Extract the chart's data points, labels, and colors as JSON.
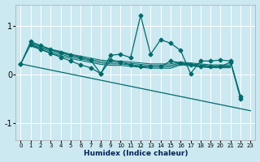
{
  "xlabel": "Humidex (Indice chaleur)",
  "background_color": "#cce8f0",
  "grid_color": "#ffffff",
  "line_color": "#006b6b",
  "xlim": [
    -0.5,
    23.5
  ],
  "ylim": [
    -1.35,
    1.45
  ],
  "yticks": [
    -1,
    0,
    1
  ],
  "xticks": [
    0,
    1,
    2,
    3,
    4,
    5,
    6,
    7,
    8,
    9,
    10,
    11,
    12,
    13,
    14,
    15,
    16,
    17,
    18,
    19,
    20,
    21,
    22,
    23
  ],
  "line_spiky": {
    "x": [
      0,
      1,
      2,
      3,
      4,
      5,
      6,
      7,
      8,
      9,
      10,
      11,
      12,
      13,
      14,
      15,
      16,
      17,
      18,
      19,
      20,
      21,
      22
    ],
    "y": [
      0.22,
      0.68,
      0.6,
      0.52,
      0.46,
      0.4,
      0.36,
      0.3,
      0.02,
      0.4,
      0.42,
      0.35,
      1.22,
      0.42,
      0.72,
      0.65,
      0.5,
      0.02,
      0.28,
      0.28,
      0.3,
      0.28,
      -0.45
    ]
  },
  "line_wavy": {
    "x": [
      0,
      1,
      2,
      3,
      4,
      5,
      6,
      7,
      8,
      9,
      10,
      11,
      12,
      13,
      14,
      15,
      16,
      17,
      18,
      19,
      20,
      21,
      22,
      23
    ],
    "y": [
      0.22,
      0.62,
      0.52,
      0.44,
      0.36,
      0.28,
      0.2,
      0.14,
      0.02,
      0.3,
      0.26,
      0.2,
      0.16,
      0.16,
      0.16,
      0.28,
      0.24,
      0.2,
      0.16,
      0.16,
      0.16,
      0.26,
      -0.5,
      null
    ]
  },
  "line_straight": {
    "x": [
      0,
      23
    ],
    "y": [
      0.22,
      -0.75
    ]
  },
  "lines_bundle": [
    {
      "x": [
        1,
        2,
        3,
        4,
        5,
        6,
        7,
        8,
        9,
        10,
        11,
        12,
        13,
        14,
        15,
        16,
        17,
        18,
        19,
        20,
        21
      ],
      "y": [
        0.65,
        0.6,
        0.52,
        0.48,
        0.42,
        0.38,
        0.34,
        0.3,
        0.28,
        0.28,
        0.26,
        0.24,
        0.22,
        0.22,
        0.22,
        0.26,
        0.24,
        0.22,
        0.2,
        0.2,
        0.2
      ]
    },
    {
      "x": [
        1,
        2,
        3,
        4,
        5,
        6,
        7,
        8,
        9,
        10,
        11,
        12,
        13,
        14,
        15,
        16,
        17,
        18,
        19,
        20,
        21
      ],
      "y": [
        0.63,
        0.57,
        0.5,
        0.45,
        0.39,
        0.35,
        0.31,
        0.27,
        0.25,
        0.25,
        0.23,
        0.21,
        0.19,
        0.19,
        0.19,
        0.24,
        0.22,
        0.2,
        0.18,
        0.18,
        0.18
      ]
    },
    {
      "x": [
        1,
        2,
        3,
        4,
        5,
        6,
        7,
        8,
        9,
        10,
        11,
        12,
        13,
        14,
        15,
        16,
        17,
        18,
        19,
        20,
        21
      ],
      "y": [
        0.61,
        0.55,
        0.47,
        0.42,
        0.36,
        0.32,
        0.28,
        0.24,
        0.22,
        0.22,
        0.2,
        0.18,
        0.16,
        0.16,
        0.16,
        0.22,
        0.2,
        0.18,
        0.16,
        0.16,
        0.16
      ]
    },
    {
      "x": [
        1,
        2,
        3,
        4,
        5,
        6,
        7,
        8,
        9,
        10,
        11,
        12,
        13,
        14,
        15,
        16,
        17,
        18,
        19,
        20,
        21
      ],
      "y": [
        0.59,
        0.52,
        0.44,
        0.39,
        0.33,
        0.29,
        0.25,
        0.21,
        0.19,
        0.19,
        0.17,
        0.15,
        0.13,
        0.13,
        0.13,
        0.2,
        0.18,
        0.16,
        0.14,
        0.14,
        0.14
      ]
    }
  ]
}
